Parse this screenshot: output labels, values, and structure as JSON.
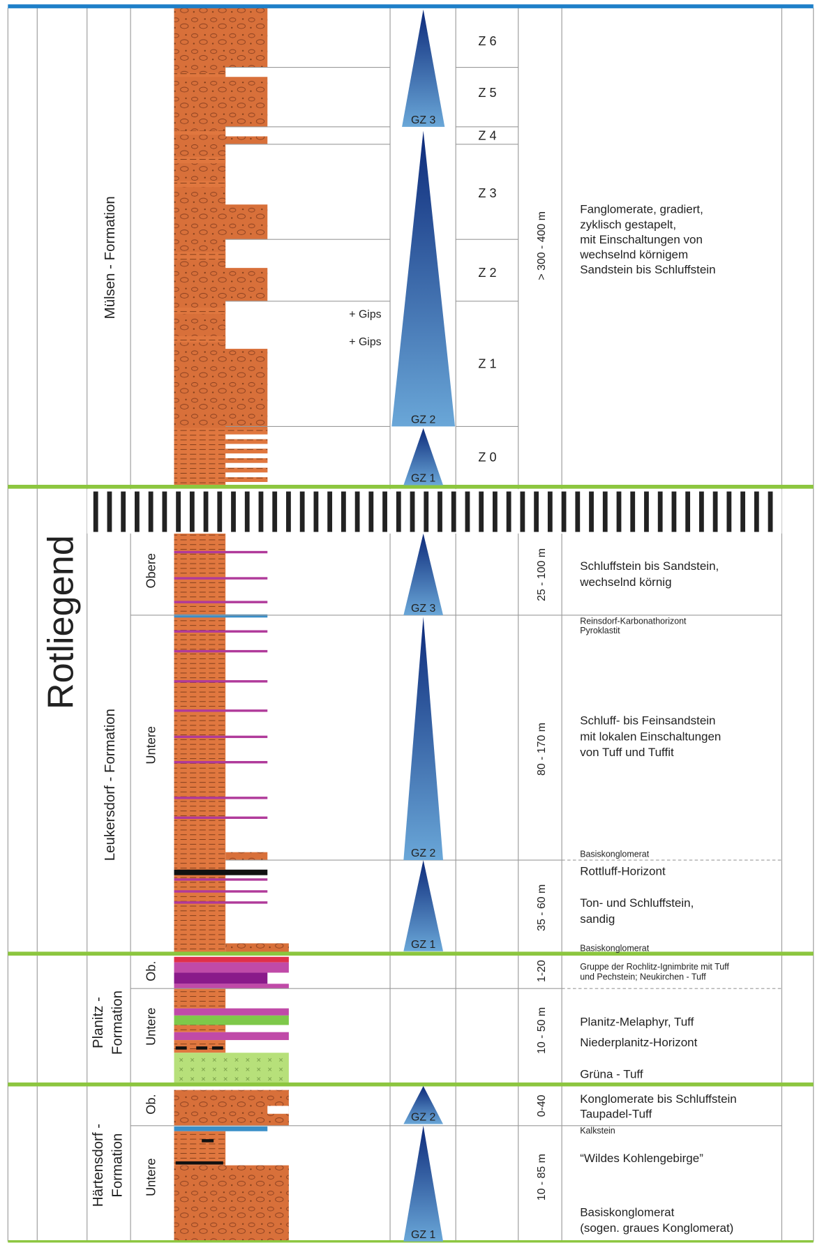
{
  "group": "Rotliegend",
  "formations": [
    {
      "lines": [
        "Mülsen - Formation"
      ]
    },
    {
      "lines": [
        "Leukersdorf - Formation"
      ]
    },
    {
      "lines": [
        "Planitz -",
        "Formation"
      ]
    },
    {
      "lines": [
        "Härtensdorf -",
        "Formation"
      ]
    }
  ],
  "members": [
    "Obere",
    "Untere",
    "Ob.",
    "Untere",
    "Ob.",
    "Untere"
  ],
  "zones": [
    "Z 6",
    "Z 5",
    "Z 4",
    "Z 3",
    "Z 2",
    "Z 1",
    "Z 0"
  ],
  "thickness": [
    "> 300 - 400 m",
    "25 - 100 m",
    "80 - 170 m",
    "35 - 60 m",
    "1-20",
    "10 - 50 m",
    "0-40",
    "10 - 85 m"
  ],
  "cycles": [
    "GZ 3",
    "GZ 2",
    "GZ 1",
    "GZ 3",
    "GZ 2",
    "GZ 1",
    "GZ 2",
    "GZ 1"
  ],
  "notes": [
    "+ Gips",
    "+ Gips"
  ],
  "descriptions": [
    {
      "lines": [
        "Fanglomerate, gradiert,",
        "zyklisch gestapelt,",
        "mit Einschaltungen von",
        "wechselnd körnigem",
        "Sandstein bis Schluffstein"
      ]
    },
    {
      "lines": [
        "Schluffstein bis Sandstein,",
        "wechselnd körnig"
      ]
    },
    {
      "lines": [
        "Reinsdorf-Karbonathorizont",
        "Pyroklastit"
      ]
    },
    {
      "lines": [
        "Schluff- bis Feinsandstein",
        "mit lokalen Einschaltungen",
        "von Tuff und Tuffit"
      ]
    },
    {
      "lines": [
        "Basiskonglomerat"
      ]
    },
    {
      "lines": [
        "Rottluff-Horizont"
      ]
    },
    {
      "lines": [
        "Ton- und Schluffstein,",
        "sandig"
      ]
    },
    {
      "lines": [
        "Basiskonglomerat"
      ]
    },
    {
      "lines": [
        "Gruppe der Rochlitz-Ignimbrite mit Tuff",
        "und Pechstein; Neukirchen - Tuff"
      ]
    },
    {
      "lines": [
        "Planitz-Melaphyr, Tuff"
      ]
    },
    {
      "lines": [
        "Niederplanitz-Horizont"
      ]
    },
    {
      "lines": [
        "Grüna - Tuff"
      ]
    },
    {
      "lines": [
        "Konglomerate bis Schluffstein",
        "Taupadel-Tuff"
      ]
    },
    {
      "lines": [
        "Kalkstein"
      ]
    },
    {
      "lines": [
        "“Wildes Kohlengebirge”"
      ]
    },
    {
      "lines": [
        "Basiskonglomerat",
        "(sogen. graues Konglomerat)"
      ]
    }
  ]
}
